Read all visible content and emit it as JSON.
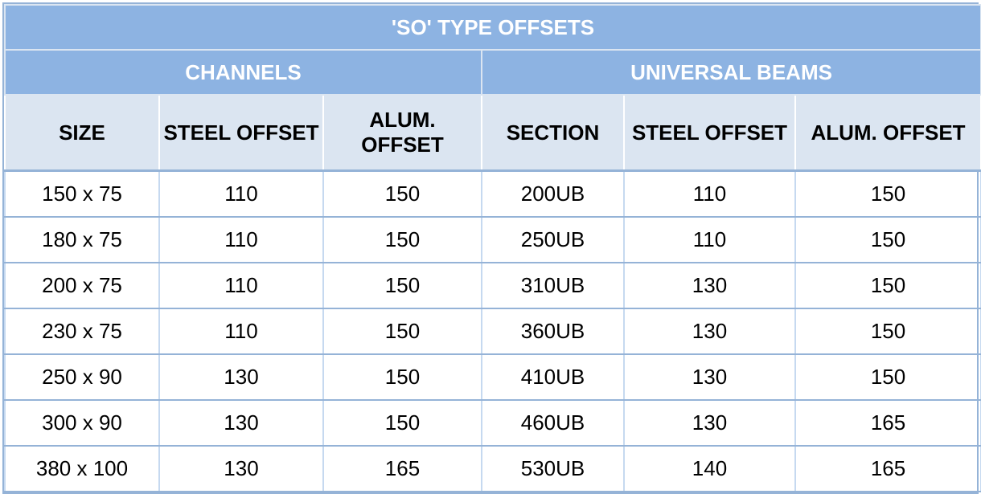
{
  "title": "'SO' TYPE OFFSETS",
  "groups": [
    "CHANNELS",
    "UNIVERSAL BEAMS"
  ],
  "headers": [
    "SIZE",
    "STEEL OFFSET",
    "ALUM. OFFSET",
    "SECTION",
    "STEEL OFFSET",
    "ALUM. OFFSET"
  ],
  "rows": [
    [
      "150 x 75",
      110,
      150,
      "200UB",
      110,
      150
    ],
    [
      "180 x 75",
      110,
      150,
      "250UB",
      110,
      150
    ],
    [
      "200 x 75",
      110,
      150,
      "310UB",
      130,
      150
    ],
    [
      "230 x 75",
      110,
      150,
      "360UB",
      130,
      150
    ],
    [
      "250 x 90",
      130,
      150,
      "410UB",
      130,
      150
    ],
    [
      "300 x 90",
      130,
      150,
      "460UB",
      130,
      165
    ],
    [
      "380 x 100",
      130,
      165,
      "530UB",
      140,
      165
    ]
  ]
}
